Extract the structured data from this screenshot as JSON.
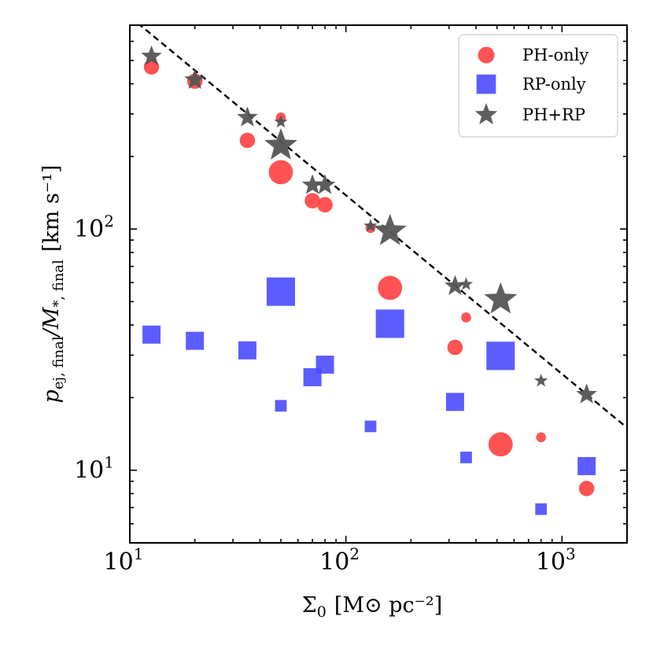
{
  "chart_data": {
    "type": "scatter",
    "title": "",
    "xlabel": {
      "base": "Σ",
      "sub": "0",
      "units": "[M⊙ pc⁻²]"
    },
    "ylabel": {
      "text": "p",
      "sub": "ej, final",
      "mid": "/M",
      "sub2": "*, final",
      "units": "[km s⁻¹]"
    },
    "x_scale": "log",
    "y_scale": "log",
    "xlim": [
      10,
      2000
    ],
    "ylim": [
      5,
      700
    ],
    "x_ticks": [
      {
        "value": 10,
        "mantissa": "10",
        "exp": "1"
      },
      {
        "value": 100,
        "mantissa": "10",
        "exp": "2"
      },
      {
        "value": 1000,
        "mantissa": "10",
        "exp": "3"
      }
    ],
    "y_ticks": [
      {
        "value": 10,
        "mantissa": "10",
        "exp": "1"
      },
      {
        "value": 100,
        "mantissa": "10",
        "exp": "2"
      }
    ],
    "grid": false,
    "legend_position": "top-right",
    "series": [
      {
        "name": "PH-only",
        "marker": "circle",
        "color": "#ff4040",
        "points": [
          {
            "x": 12.6,
            "y": 470,
            "size": 1.4
          },
          {
            "x": 20,
            "y": 410,
            "size": 1.4
          },
          {
            "x": 35,
            "y": 233,
            "size": 1.4
          },
          {
            "x": 50,
            "y": 290,
            "size": 0.9
          },
          {
            "x": 50,
            "y": 172,
            "size": 2.2
          },
          {
            "x": 70,
            "y": 131,
            "size": 1.4
          },
          {
            "x": 80,
            "y": 126,
            "size": 1.4
          },
          {
            "x": 130,
            "y": 101,
            "size": 0.9
          },
          {
            "x": 160,
            "y": 57,
            "size": 2.2
          },
          {
            "x": 320,
            "y": 32.3,
            "size": 1.4
          },
          {
            "x": 360,
            "y": 43,
            "size": 0.9
          },
          {
            "x": 520,
            "y": 12.8,
            "size": 2.2
          },
          {
            "x": 800,
            "y": 13.7,
            "size": 0.9
          },
          {
            "x": 1300,
            "y": 8.4,
            "size": 1.4
          }
        ]
      },
      {
        "name": "RP-only",
        "marker": "square",
        "color": "#4b4bff",
        "points": [
          {
            "x": 12.6,
            "y": 36.5,
            "size": 1.4
          },
          {
            "x": 20,
            "y": 34.4,
            "size": 1.4
          },
          {
            "x": 35,
            "y": 31.4,
            "size": 1.4
          },
          {
            "x": 50,
            "y": 55,
            "size": 2.2
          },
          {
            "x": 50,
            "y": 18.5,
            "size": 0.9
          },
          {
            "x": 70,
            "y": 24.3,
            "size": 1.4
          },
          {
            "x": 80,
            "y": 27.4,
            "size": 1.4
          },
          {
            "x": 130,
            "y": 15.2,
            "size": 0.9
          },
          {
            "x": 160,
            "y": 40.5,
            "size": 2.2
          },
          {
            "x": 320,
            "y": 19.2,
            "size": 1.4
          },
          {
            "x": 360,
            "y": 11.3,
            "size": 0.9
          },
          {
            "x": 520,
            "y": 29.8,
            "size": 2.2
          },
          {
            "x": 800,
            "y": 6.9,
            "size": 0.9
          },
          {
            "x": 1300,
            "y": 10.4,
            "size": 1.4
          }
        ]
      },
      {
        "name": "PH+RP",
        "marker": "star",
        "color": "#555555",
        "points": [
          {
            "x": 12.6,
            "y": 520,
            "size": 1.4
          },
          {
            "x": 20,
            "y": 415,
            "size": 1.4
          },
          {
            "x": 35,
            "y": 290,
            "size": 1.4
          },
          {
            "x": 50,
            "y": 278,
            "size": 0.9
          },
          {
            "x": 50,
            "y": 222,
            "size": 2.2
          },
          {
            "x": 70,
            "y": 152,
            "size": 1.4
          },
          {
            "x": 80,
            "y": 152,
            "size": 1.4
          },
          {
            "x": 130,
            "y": 103,
            "size": 0.9
          },
          {
            "x": 160,
            "y": 98,
            "size": 2.2
          },
          {
            "x": 320,
            "y": 58,
            "size": 1.4
          },
          {
            "x": 360,
            "y": 59,
            "size": 0.9
          },
          {
            "x": 520,
            "y": 51,
            "size": 2.2
          },
          {
            "x": 800,
            "y": 23.5,
            "size": 0.9
          },
          {
            "x": 1300,
            "y": 20.6,
            "size": 1.4
          }
        ]
      }
    ],
    "fit_line": {
      "style": "dashed",
      "color": "#000000",
      "from": [
        10,
        760
      ],
      "to": [
        2000,
        15
      ]
    }
  }
}
